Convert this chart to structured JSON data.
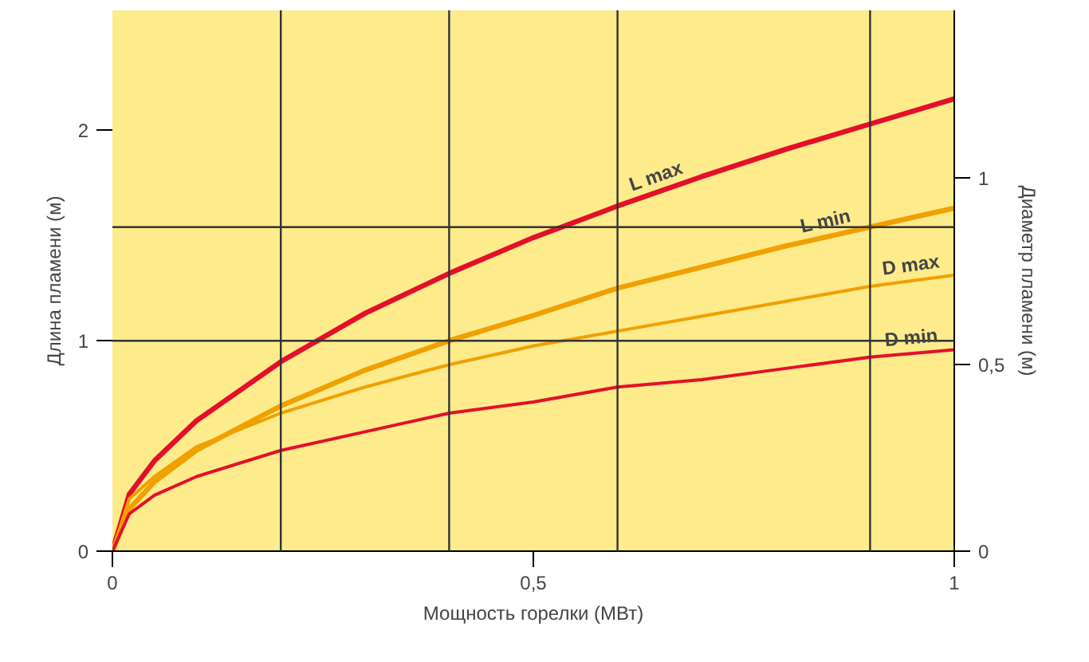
{
  "chart_data": {
    "type": "line",
    "xlabel": "Мощность горелки (МВт)",
    "ylabel": "Длина пламени (м)",
    "y2label": "Диаметр пламени (м)",
    "x": [
      0,
      0.02,
      0.05,
      0.1,
      0.2,
      0.3,
      0.4,
      0.5,
      0.6,
      0.7,
      0.8,
      0.9,
      1
    ],
    "series": [
      {
        "name": "L max",
        "color": "#e3102a",
        "values": [
          0,
          0.27,
          0.43,
          0.62,
          0.9,
          1.13,
          1.32,
          1.49,
          1.64,
          1.78,
          1.91,
          2.03,
          2.15
        ]
      },
      {
        "name": "L min",
        "color": "#f0a000",
        "values": [
          0,
          0.2,
          0.33,
          0.48,
          0.69,
          0.86,
          1.0,
          1.12,
          1.25,
          1.35,
          1.45,
          1.54,
          1.63
        ]
      },
      {
        "name": "D max",
        "color": "#f0a000",
        "axis": "y2",
        "values": [
          0,
          0.14,
          0.2,
          0.28,
          0.37,
          0.44,
          0.5,
          0.55,
          0.59,
          0.63,
          0.67,
          0.71,
          0.74
        ]
      },
      {
        "name": "D min",
        "color": "#e3102a",
        "axis": "y2",
        "values": [
          0,
          0.1,
          0.15,
          0.2,
          0.27,
          0.32,
          0.37,
          0.4,
          0.44,
          0.46,
          0.49,
          0.52,
          0.54
        ]
      }
    ],
    "xlim": [
      0,
      1
    ],
    "xticks": [
      0,
      {
        "value": 0.5,
        "label": "0,5"
      },
      1
    ],
    "ylim": [
      0,
      2.57
    ],
    "yticks": [
      0,
      1,
      2
    ],
    "y2lim": [
      0,
      1.45
    ],
    "y2ticks": [
      0,
      {
        "value": 0.5,
        "label": "0,5"
      },
      1
    ],
    "ref_lines": [
      {
        "axis": "x",
        "value": 0.2,
        "color": "#333333"
      },
      {
        "axis": "x",
        "value": 0.4,
        "color": "#333333"
      },
      {
        "axis": "x",
        "value": 0.6,
        "color": "#333333"
      },
      {
        "axis": "x",
        "value": 0.9,
        "color": "#333333"
      },
      {
        "axis": "y",
        "value": 1,
        "color": "#333333"
      },
      {
        "axis": "y",
        "value": 1.54,
        "color": "#333333"
      }
    ],
    "grid": false,
    "marker": "none",
    "line_style": "solid"
  }
}
